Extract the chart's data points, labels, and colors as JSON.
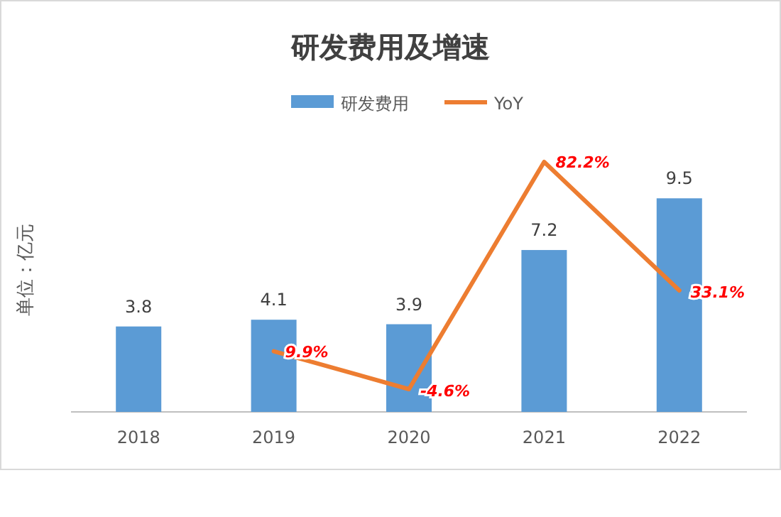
{
  "chart_data": {
    "type": "bar",
    "title": "研发费用及增速",
    "ylabel": "单位：亿元",
    "categories": [
      "2018",
      "2019",
      "2020",
      "2021",
      "2022"
    ],
    "series": [
      {
        "name": "研发费用",
        "color": "#5b9bd5",
        "values": [
          3.8,
          4.1,
          3.9,
          7.2,
          9.5
        ],
        "value_labels": [
          "3.8",
          "4.1",
          "3.9",
          "7.2",
          "9.5"
        ]
      },
      {
        "name": "YoY",
        "type": "line",
        "axis": "y2",
        "color": "#ed7d31",
        "values": [
          null,
          9.9,
          -4.6,
          82.2,
          33.1
        ],
        "value_labels": [
          null,
          "9.9%",
          "-4.6%",
          "82.2%",
          "33.1%"
        ]
      }
    ],
    "legend": "top"
  }
}
